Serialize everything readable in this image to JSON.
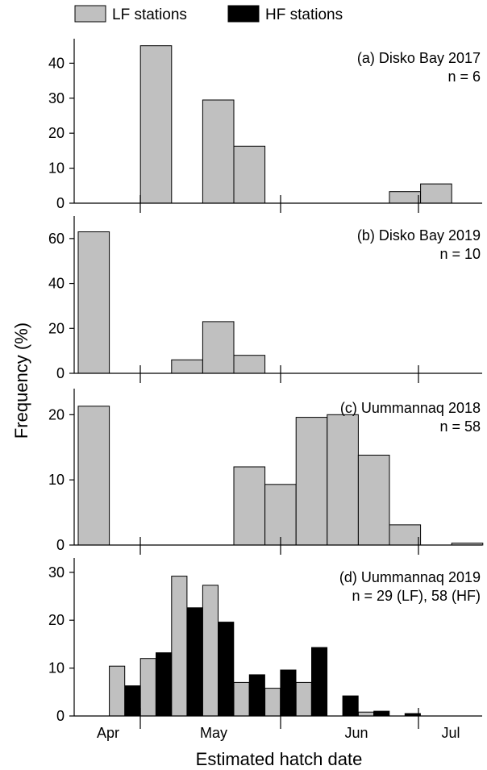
{
  "legend": [
    {
      "label": "LF stations",
      "color": "#c0c0c0"
    },
    {
      "label": "HF stations",
      "color": "#000000"
    }
  ],
  "ylabel": "Frequency (%)",
  "xlabel": "Estimated hatch date",
  "x_tick_labels": [
    "Apr",
    "May",
    "Jun",
    "Jul"
  ],
  "chart_data": [
    {
      "type": "bar",
      "panel": "(a)",
      "title": "(a) Disko Bay 2017",
      "subtitle": "n = 6",
      "ylim": [
        0,
        47
      ],
      "yticks": [
        0,
        10,
        20,
        30,
        40
      ],
      "series": [
        {
          "name": "LF stations",
          "bars": [
            {
              "bin": 2,
              "value": 45
            },
            {
              "bin": 4,
              "value": 29.5
            },
            {
              "bin": 5,
              "value": 16.3
            },
            {
              "bin": 10,
              "value": 3.3
            },
            {
              "bin": 11,
              "value": 5.5
            }
          ]
        }
      ]
    },
    {
      "type": "bar",
      "panel": "(b)",
      "title": "(b) Disko Bay 2019",
      "subtitle": "n = 10",
      "ylim": [
        0,
        70
      ],
      "yticks": [
        0,
        20,
        40,
        60
      ],
      "series": [
        {
          "name": "LF stations",
          "bars": [
            {
              "bin": 0,
              "value": 63
            },
            {
              "bin": 3,
              "value": 6
            },
            {
              "bin": 4,
              "value": 23
            },
            {
              "bin": 5,
              "value": 8
            }
          ]
        }
      ]
    },
    {
      "type": "bar",
      "panel": "(c)",
      "title": "(c) Uummannaq 2018",
      "subtitle": "n = 58",
      "ylim": [
        0,
        24
      ],
      "yticks": [
        0,
        10,
        20
      ],
      "series": [
        {
          "name": "LF stations",
          "bars": [
            {
              "bin": 0,
              "value": 21.3
            },
            {
              "bin": 5,
              "value": 12
            },
            {
              "bin": 6,
              "value": 9.3
            },
            {
              "bin": 7,
              "value": 19.6
            },
            {
              "bin": 8,
              "value": 20
            },
            {
              "bin": 9,
              "value": 13.8
            },
            {
              "bin": 10,
              "value": 3.1
            },
            {
              "bin": 12,
              "value": 0.3
            }
          ]
        }
      ]
    },
    {
      "type": "bar",
      "panel": "(d)",
      "title": "(d) Uummannaq 2019",
      "subtitle": "n = 29 (LF), 58 (HF)",
      "ylim": [
        0,
        33
      ],
      "yticks": [
        0,
        10,
        20,
        30
      ],
      "series": [
        {
          "name": "LF stations",
          "bars": [
            {
              "bin": 1,
              "value": 10.4
            },
            {
              "bin": 2,
              "value": 12
            },
            {
              "bin": 3,
              "value": 29.2
            },
            {
              "bin": 4,
              "value": 27.3
            },
            {
              "bin": 5,
              "value": 7
            },
            {
              "bin": 6,
              "value": 5.8
            },
            {
              "bin": 7,
              "value": 7
            },
            {
              "bin": 9,
              "value": 0.8
            }
          ]
        },
        {
          "name": "HF stations",
          "bars": [
            {
              "bin": 1,
              "value": 6.3
            },
            {
              "bin": 2,
              "value": 13.2
            },
            {
              "bin": 3,
              "value": 22.6
            },
            {
              "bin": 4,
              "value": 19.6
            },
            {
              "bin": 5,
              "value": 8.6
            },
            {
              "bin": 6,
              "value": 9.6
            },
            {
              "bin": 7,
              "value": 14.3
            },
            {
              "bin": 8,
              "value": 4.2
            },
            {
              "bin": 9,
              "value": 1
            },
            {
              "bin": 10,
              "value": 0.5
            }
          ]
        }
      ]
    }
  ]
}
